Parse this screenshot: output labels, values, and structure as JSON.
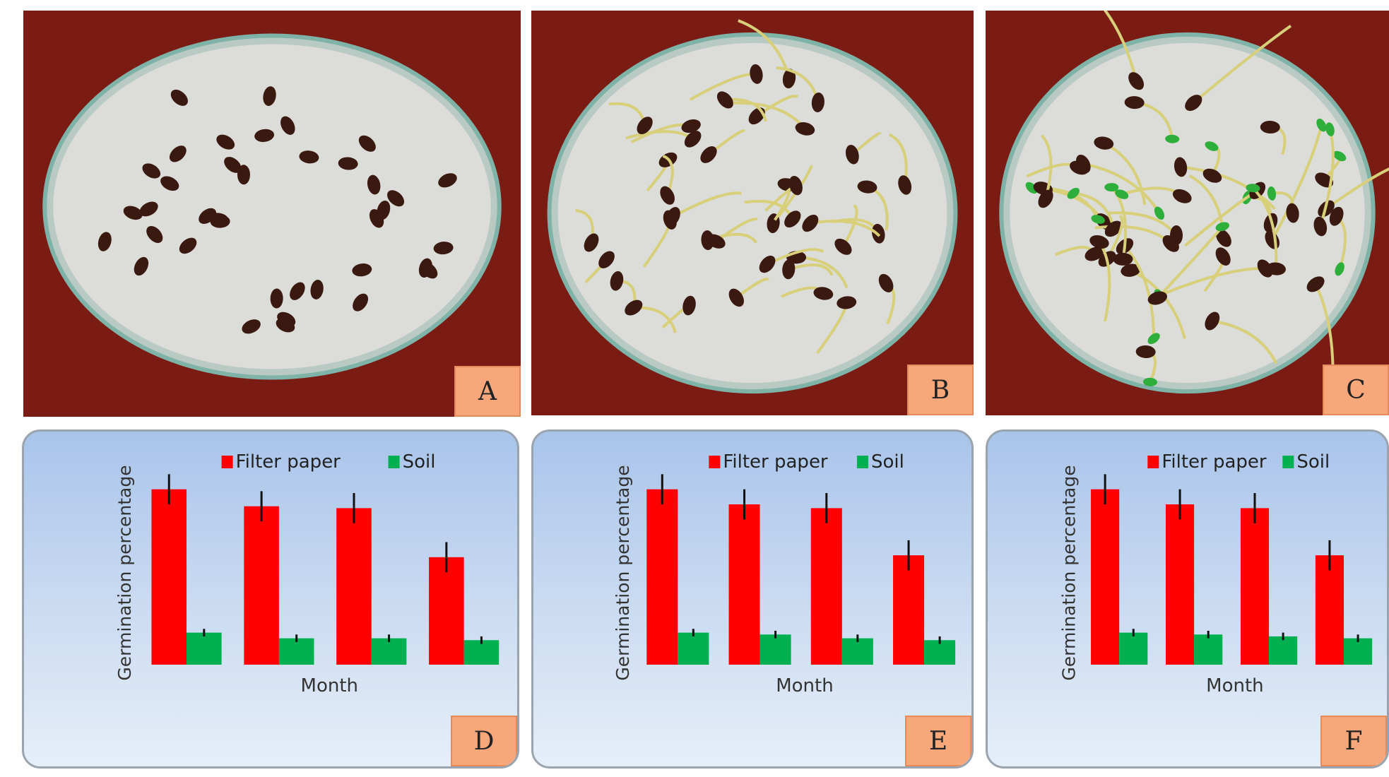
{
  "photos": [
    {
      "label": "A",
      "stage": "seeds"
    },
    {
      "label": "B",
      "stage": "sprouting"
    },
    {
      "label": "C",
      "stage": "seedlings"
    }
  ],
  "colors": {
    "filter_paper": "#ff0000",
    "soil": "#00b050",
    "label_box": "#f7a77a",
    "photo_background": "#7a1c14"
  },
  "chart_data": [
    {
      "type": "bar",
      "panel_label": "D",
      "xlabel": "Month",
      "ylabel": "Germination percentage",
      "legend_position": "top",
      "grid": false,
      "categories": [
        "",
        "",
        "",
        ""
      ],
      "series": [
        {
          "name": "Filter paper",
          "values": [
            93,
            84,
            83,
            57
          ]
        },
        {
          "name": "Soil",
          "values": [
            17,
            14,
            14,
            13
          ]
        }
      ]
    },
    {
      "type": "bar",
      "panel_label": "E",
      "xlabel": "Month",
      "ylabel": "Germination percentage",
      "legend_position": "top",
      "grid": false,
      "categories": [
        "",
        "",
        "",
        ""
      ],
      "series": [
        {
          "name": "Filter paper",
          "values": [
            93,
            85,
            83,
            58
          ]
        },
        {
          "name": "Soil",
          "values": [
            17,
            16,
            14,
            13
          ]
        }
      ]
    },
    {
      "type": "bar",
      "panel_label": "F",
      "xlabel": "Month",
      "ylabel": "Germination percentage",
      "legend_position": "top",
      "grid": false,
      "categories": [
        "",
        "",
        "",
        ""
      ],
      "series": [
        {
          "name": "Filter paper",
          "values": [
            93,
            85,
            83,
            58
          ]
        },
        {
          "name": "Soil",
          "values": [
            17,
            16,
            15,
            14
          ]
        }
      ]
    }
  ]
}
